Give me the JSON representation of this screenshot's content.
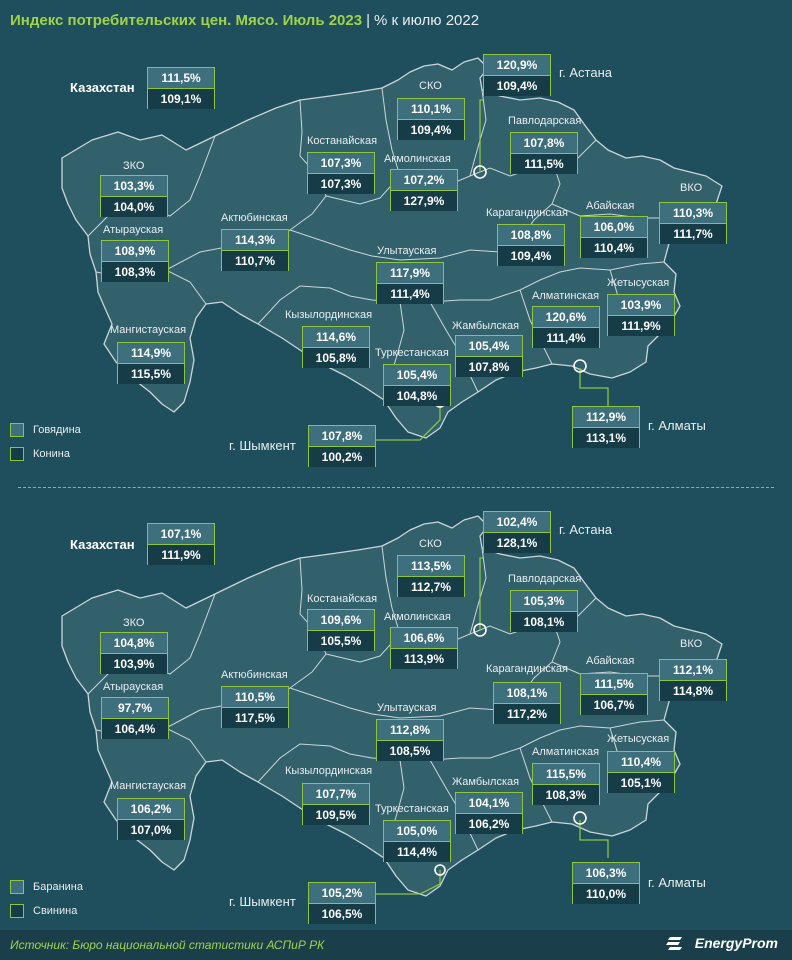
{
  "title": {
    "main": "Индекс потребительских цен. Мясо. Июль 2023",
    "separator": "|",
    "sub": "% к июлю 2022"
  },
  "colors": {
    "background": "#1f4e5c",
    "accent": "#8cc63f",
    "title": "#9fd34a",
    "row1": "#3e6f7c",
    "row2": "#163c47"
  },
  "top": {
    "legend": [
      "Говядина",
      "Конина"
    ],
    "kazakhstan": {
      "name": "Казахстан",
      "v1": "111,5%",
      "v2": "109,1%"
    },
    "regions": [
      {
        "name": "СКО",
        "v1": "110,1%",
        "v2": "109,4%"
      },
      {
        "name": "Костанайская",
        "v1": "107,3%",
        "v2": "107,3%"
      },
      {
        "name": "Акмолинская",
        "v1": "107,2%",
        "v2": "127,9%"
      },
      {
        "name": "Павлодарская",
        "v1": "107,8%",
        "v2": "111,5%"
      },
      {
        "name": "ЗКО",
        "v1": "103,3%",
        "v2": "104,0%"
      },
      {
        "name": "Атырауская",
        "v1": "108,9%",
        "v2": "108,3%"
      },
      {
        "name": "Актюбинская",
        "v1": "114,3%",
        "v2": "110,7%"
      },
      {
        "name": "Карагандинская",
        "v1": "108,8%",
        "v2": "109,4%"
      },
      {
        "name": "Абайская",
        "v1": "106,0%",
        "v2": "110,4%"
      },
      {
        "name": "ВКО",
        "v1": "110,3%",
        "v2": "111,7%"
      },
      {
        "name": "Улытауская",
        "v1": "117,9%",
        "v2": "111,4%"
      },
      {
        "name": "Мангистауская",
        "v1": "114,9%",
        "v2": "115,5%"
      },
      {
        "name": "Кызылординская",
        "v1": "114,6%",
        "v2": "105,8%"
      },
      {
        "name": "Туркестанская",
        "v1": "105,4%",
        "v2": "104,8%"
      },
      {
        "name": "Жамбылская",
        "v1": "105,4%",
        "v2": "107,8%"
      },
      {
        "name": "Алматинская",
        "v1": "120,6%",
        "v2": "111,4%"
      },
      {
        "name": "Жетысуская",
        "v1": "103,9%",
        "v2": "111,9%"
      }
    ],
    "cities": [
      {
        "name": "г. Астана",
        "v1": "120,9%",
        "v2": "109,4%"
      },
      {
        "name": "г. Алматы",
        "v1": "112,9%",
        "v2": "113,1%"
      },
      {
        "name": "г. Шымкент",
        "v1": "107,8%",
        "v2": "100,2%"
      }
    ]
  },
  "bottom": {
    "legend": [
      "Баранина",
      "Свинина"
    ],
    "kazakhstan": {
      "name": "Казахстан",
      "v1": "107,1%",
      "v2": "111,9%"
    },
    "regions": [
      {
        "name": "СКО",
        "v1": "113,5%",
        "v2": "112,7%"
      },
      {
        "name": "Костанайская",
        "v1": "109,6%",
        "v2": "105,5%"
      },
      {
        "name": "Акмолинская",
        "v1": "106,6%",
        "v2": "113,9%"
      },
      {
        "name": "Павлодарская",
        "v1": "105,3%",
        "v2": "108,1%"
      },
      {
        "name": "ЗКО",
        "v1": "104,8%",
        "v2": "103,9%"
      },
      {
        "name": "Атырауская",
        "v1": "97,7%",
        "v2": "106,4%"
      },
      {
        "name": "Актюбинская",
        "v1": "110,5%",
        "v2": "117,5%"
      },
      {
        "name": "Карагандинская",
        "v1": "108,1%",
        "v2": "117,2%"
      },
      {
        "name": "Абайская",
        "v1": "111,5%",
        "v2": "106,7%"
      },
      {
        "name": "ВКО",
        "v1": "112,1%",
        "v2": "114,8%"
      },
      {
        "name": "Улытауская",
        "v1": "112,8%",
        "v2": "108,5%"
      },
      {
        "name": "Мангистауская",
        "v1": "106,2%",
        "v2": "107,0%"
      },
      {
        "name": "Кызылординская",
        "v1": "107,7%",
        "v2": "109,5%"
      },
      {
        "name": "Туркестанская",
        "v1": "105,0%",
        "v2": "114,4%"
      },
      {
        "name": "Жамбылская",
        "v1": "104,1%",
        "v2": "106,2%"
      },
      {
        "name": "Алматинская",
        "v1": "115,5%",
        "v2": "108,3%"
      },
      {
        "name": "Жетысуская",
        "v1": "110,4%",
        "v2": "105,1%"
      }
    ],
    "cities": [
      {
        "name": "г. Астана",
        "v1": "102,4%",
        "v2": "128,1%"
      },
      {
        "name": "г. Алматы",
        "v1": "106,3%",
        "v2": "110,0%"
      },
      {
        "name": "г. Шымкент",
        "v1": "105,2%",
        "v2": "106,5%"
      }
    ]
  },
  "footer": {
    "source": "Источник: Бюро национальной статистики АСПиР РК",
    "logo": "EnergyProm"
  }
}
